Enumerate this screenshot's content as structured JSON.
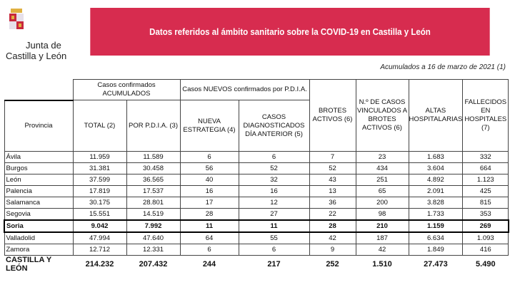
{
  "logo": {
    "line1": "Junta de",
    "line2": "Castilla y León"
  },
  "banner": {
    "title": "Datos referidos al ámbito sanitario sobre la COVID-19 en Castilla y León"
  },
  "date_note": "Acumulados a 16 de marzo de 2021 (1)",
  "table": {
    "groups": {
      "acumulados": "Casos confirmados ACUMULADOS",
      "nuevos": "Casos NUEVOS confirmados por P.D.I.A."
    },
    "headers": [
      "Provincia",
      "TOTAL (2)",
      "POR P.D.I.A. (3)",
      "NUEVA ESTRATEGIA (4)",
      "CASOS DIAGNOSTICADOS DÍA ANTERIOR (5)",
      "BROTES ACTIVOS (6)",
      "N.º DE CASOS VINCULADOS A BROTES ACTIVOS (6)",
      "ALTAS HOSPITALARIAS",
      "FALLECIDOS EN HOSPITALES (7)"
    ],
    "rows": [
      [
        "Ávila",
        "11.959",
        "11.589",
        "6",
        "6",
        "7",
        "23",
        "1.683",
        "332"
      ],
      [
        "Burgos",
        "31.381",
        "30.458",
        "56",
        "52",
        "52",
        "434",
        "3.604",
        "664"
      ],
      [
        "León",
        "37.599",
        "36.565",
        "40",
        "32",
        "43",
        "251",
        "4.892",
        "1.123"
      ],
      [
        "Palencia",
        "17.819",
        "17.537",
        "16",
        "16",
        "13",
        "65",
        "2.091",
        "425"
      ],
      [
        "Salamanca",
        "30.175",
        "28.801",
        "17",
        "12",
        "36",
        "200",
        "3.828",
        "815"
      ],
      [
        "Segovia",
        "15.551",
        "14.519",
        "28",
        "27",
        "22",
        "98",
        "1.733",
        "353"
      ],
      [
        "Soria",
        "9.042",
        "7.992",
        "11",
        "11",
        "28",
        "210",
        "1.159",
        "269"
      ],
      [
        "Valladolid",
        "47.994",
        "47.640",
        "64",
        "55",
        "42",
        "187",
        "6.634",
        "1.093"
      ],
      [
        "Zamora",
        "12.712",
        "12.331",
        "6",
        "6",
        "9",
        "42",
        "1.849",
        "416"
      ]
    ],
    "highlighted_row": "Soria",
    "total": [
      "CASTILLA Y LEÓN",
      "214.232",
      "207.432",
      "244",
      "217",
      "252",
      "1.510",
      "27.473",
      "5.490"
    ]
  },
  "colors": {
    "banner": "#d72c4f"
  }
}
